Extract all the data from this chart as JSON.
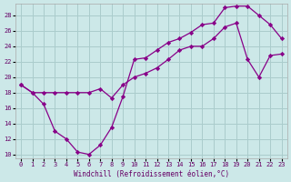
{
  "xlabel": "Windchill (Refroidissement éolien,°C)",
  "bg_color": "#cce8e8",
  "line_color": "#880088",
  "grid_color": "#aacccc",
  "xlim": [
    -0.5,
    23.5
  ],
  "ylim": [
    9.5,
    29.5
  ],
  "yticks": [
    10,
    12,
    14,
    16,
    18,
    20,
    22,
    24,
    26,
    28
  ],
  "xticks": [
    0,
    1,
    2,
    3,
    4,
    5,
    6,
    7,
    8,
    9,
    10,
    11,
    12,
    13,
    14,
    15,
    16,
    17,
    18,
    19,
    20,
    21,
    22,
    23
  ],
  "line1_x": [
    0,
    1,
    2,
    3,
    4,
    5,
    6,
    7,
    8,
    9,
    10,
    11,
    12,
    13,
    14,
    15,
    16,
    17,
    18,
    19,
    20,
    21,
    22,
    23
  ],
  "line1_y": [
    19.0,
    18.0,
    16.5,
    13.0,
    12.0,
    10.3,
    10.0,
    11.2,
    13.5,
    17.5,
    22.3,
    22.5,
    23.5,
    24.5,
    25.0,
    25.8,
    26.8,
    27.0,
    29.0,
    29.2,
    29.2,
    28.0,
    26.8,
    25.0
  ],
  "line2_x": [
    0,
    1,
    2,
    3,
    4,
    5,
    6,
    7,
    8,
    9,
    10,
    11,
    12,
    13,
    14,
    15,
    16,
    17,
    18,
    19,
    20,
    21,
    22,
    23
  ],
  "line2_y": [
    19.0,
    18.0,
    18.0,
    18.0,
    18.0,
    18.0,
    18.0,
    18.5,
    17.3,
    19.0,
    20.0,
    20.5,
    21.2,
    22.3,
    23.5,
    24.0,
    24.0,
    25.0,
    26.5,
    27.0,
    22.3,
    20.0,
    22.8,
    23.0
  ]
}
